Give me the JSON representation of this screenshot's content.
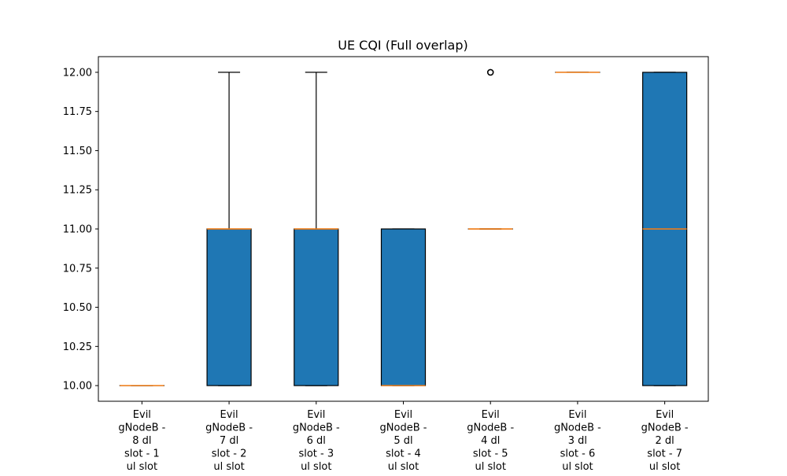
{
  "chart_data": {
    "type": "box",
    "title": "UE CQI (Full overlap)",
    "xlabel": "",
    "ylabel": "",
    "ylim": [
      9.9,
      12.1
    ],
    "yticks": [
      "10.00",
      "10.25",
      "10.50",
      "10.75",
      "11.00",
      "11.25",
      "11.50",
      "11.75",
      "12.00"
    ],
    "grid": false,
    "colors": {
      "box_fill": "#1f77b4",
      "median": "#ff7f0e",
      "edge": "#000000"
    },
    "categories": [
      [
        "Evil",
        "gNodeB -",
        "8 dl",
        "slot - 1",
        "ul slot"
      ],
      [
        "Evil",
        "gNodeB -",
        "7 dl",
        "slot - 2",
        "ul slot"
      ],
      [
        "Evil",
        "gNodeB -",
        "6 dl",
        "slot - 3",
        "ul slot"
      ],
      [
        "Evil",
        "gNodeB -",
        "5 dl",
        "slot - 4",
        "ul slot"
      ],
      [
        "Evil",
        "gNodeB -",
        "4 dl",
        "slot - 5",
        "ul slot"
      ],
      [
        "Evil",
        "gNodeB -",
        "3 dl",
        "slot - 6",
        "ul slot"
      ],
      [
        "Evil",
        "gNodeB -",
        "2 dl",
        "slot - 7",
        "ul slot"
      ]
    ],
    "boxes": [
      {
        "whisker_low": 10,
        "q1": 10,
        "median": 10,
        "q3": 10,
        "whisker_high": 10,
        "outliers": []
      },
      {
        "whisker_low": 10,
        "q1": 10,
        "median": 11,
        "q3": 11,
        "whisker_high": 12,
        "outliers": []
      },
      {
        "whisker_low": 10,
        "q1": 10,
        "median": 11,
        "q3": 11,
        "whisker_high": 12,
        "outliers": []
      },
      {
        "whisker_low": 10,
        "q1": 10,
        "median": 10,
        "q3": 11,
        "whisker_high": 11,
        "outliers": []
      },
      {
        "whisker_low": 11,
        "q1": 11,
        "median": 11,
        "q3": 11,
        "whisker_high": 11,
        "outliers": [
          12
        ]
      },
      {
        "whisker_low": 12,
        "q1": 12,
        "median": 12,
        "q3": 12,
        "whisker_high": 12,
        "outliers": []
      },
      {
        "whisker_low": 10,
        "q1": 10,
        "median": 11,
        "q3": 12,
        "whisker_high": 12,
        "outliers": []
      }
    ]
  }
}
